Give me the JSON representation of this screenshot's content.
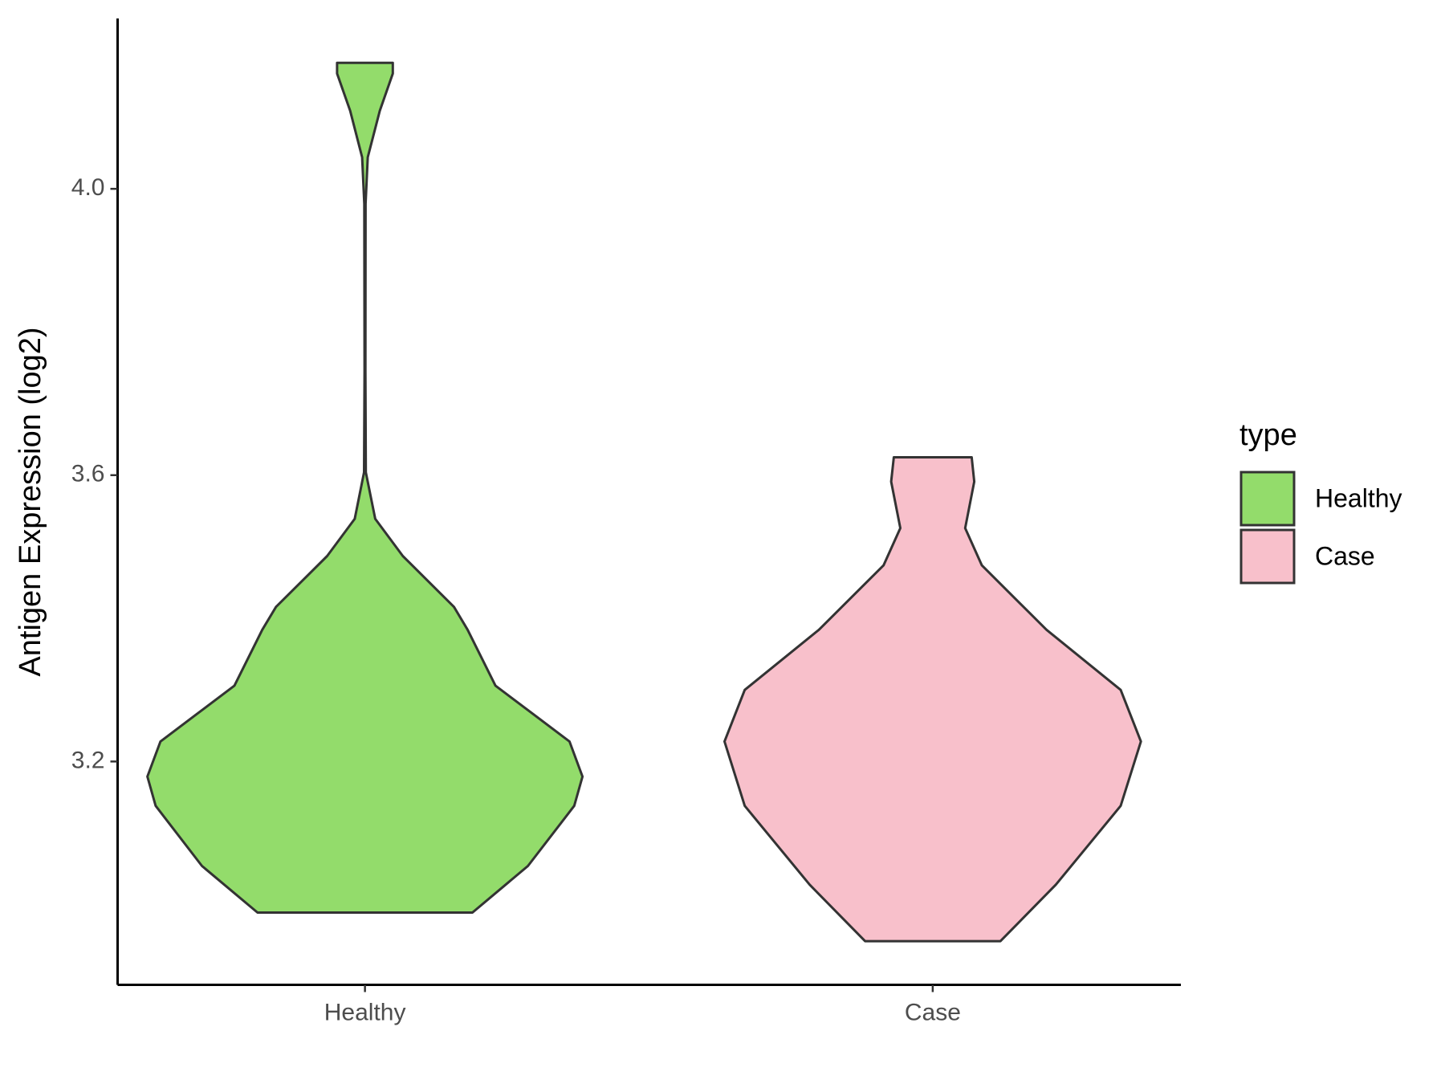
{
  "chart_data": {
    "type": "violin",
    "y_label": "Antigen Expression (log2)",
    "categories": [
      "Healthy",
      "Case"
    ],
    "legend_title": "type",
    "legend_position": "right",
    "ylim": [
      2.888,
      4.238
    ],
    "yticks": [
      3.2,
      3.6,
      {
        "value": 4.0,
        "label": "4.0"
      }
    ],
    "series": [
      {
        "name": "Healthy",
        "color": "#93dc6b",
        "y": [
          2.989,
          3.054,
          3.138,
          3.179,
          3.228,
          3.306,
          3.384,
          3.416,
          3.487,
          3.539,
          3.604,
          3.746,
          3.979,
          4.044,
          4.109,
          4.161,
          4.176
        ],
        "density": [
          0.494,
          0.749,
          0.962,
          1.0,
          0.94,
          0.6,
          0.472,
          0.409,
          0.174,
          0.047,
          0.004,
          0.002,
          0.003,
          0.013,
          0.068,
          0.128,
          0.128
        ]
      },
      {
        "name": "Case",
        "color": "#f8c0cb",
        "y": [
          2.949,
          3.028,
          3.138,
          3.228,
          3.3,
          3.384,
          3.474,
          3.526,
          3.591,
          3.625
        ],
        "density": [
          0.311,
          0.566,
          0.864,
          0.957,
          0.864,
          0.523,
          0.226,
          0.149,
          0.191,
          0.179
        ]
      }
    ]
  }
}
